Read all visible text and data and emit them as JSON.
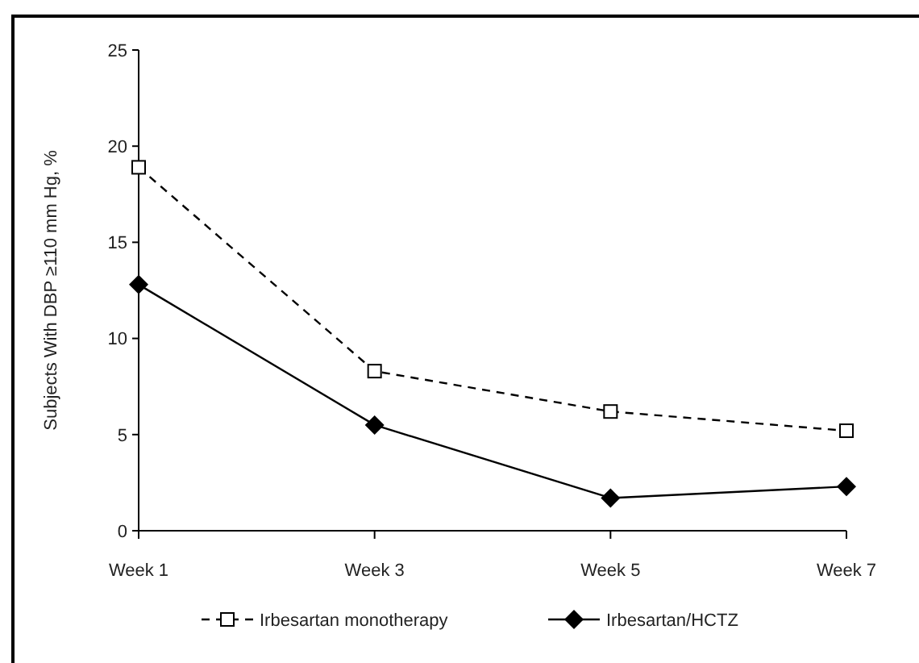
{
  "chart_data": {
    "type": "line",
    "ylabel": "Subjects With DBP ≥110  mm Hg, %",
    "categories": [
      "Week 1",
      "Week 3",
      "Week 5",
      "Week 7"
    ],
    "ylim": [
      0,
      25
    ],
    "yticks": [
      0,
      5,
      10,
      15,
      20,
      25
    ],
    "grid": false,
    "legend": "bottom",
    "series": [
      {
        "name": "Irbesartan monotherapy",
        "color": "#000000",
        "marker": "square",
        "line_style": "dashed",
        "values": [
          18.9,
          8.3,
          6.2,
          5.2
        ]
      },
      {
        "name": "Irbesartan/HCTZ",
        "color": "#000000",
        "marker": "diamond",
        "line_style": "solid",
        "values": [
          12.8,
          5.5,
          1.7,
          2.3
        ]
      }
    ]
  }
}
